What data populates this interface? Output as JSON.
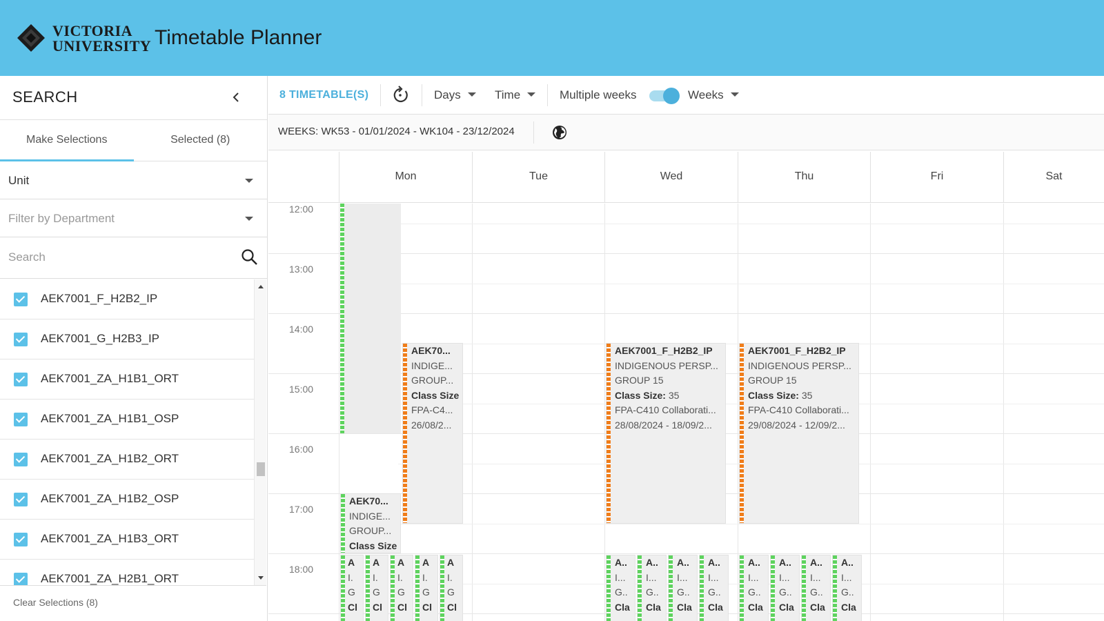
{
  "header": {
    "logo_line1": "VICTORIA",
    "logo_line2": "UNIVERSITY",
    "title": "Timetable Planner"
  },
  "sidebar": {
    "title": "SEARCH",
    "collapse_icon": "chevron-left-icon",
    "tabs": [
      {
        "label": "Make Selections",
        "active": true
      },
      {
        "label": "Selected (8)",
        "active": false
      }
    ],
    "unit_select": "Unit",
    "department_placeholder": "Filter by Department",
    "search_placeholder": "Search",
    "items": [
      {
        "label": "AEK7001_F_H2B2_IP",
        "checked": true
      },
      {
        "label": "AEK7001_G_H2B3_IP",
        "checked": true
      },
      {
        "label": "AEK7001_ZA_H1B1_ORT",
        "checked": true
      },
      {
        "label": "AEK7001_ZA_H1B1_OSP",
        "checked": true
      },
      {
        "label": "AEK7001_ZA_H1B2_ORT",
        "checked": true
      },
      {
        "label": "AEK7001_ZA_H1B2_OSP",
        "checked": true
      },
      {
        "label": "AEK7001_ZA_H1B3_ORT",
        "checked": true
      },
      {
        "label": "AEK7001_ZA_H2B1_ORT",
        "checked": true
      }
    ],
    "clear_label": "Clear Selections (8)"
  },
  "toolbar": {
    "timetables": "8 TIMETABLE(S)",
    "days": "Days",
    "time": "Time",
    "multiple_weeks": "Multiple weeks",
    "weeks": "Weeks",
    "multiple_weeks_on": true
  },
  "weeks_bar": {
    "text": "WEEKS: WK53 - 01/01/2024 - WK104 - 23/12/2024"
  },
  "days": [
    "Mon",
    "Tue",
    "Wed",
    "Thu",
    "Fri",
    "Sat"
  ],
  "times": [
    "12:00",
    "13:00",
    "14:00",
    "15:00",
    "16:00",
    "17:00",
    "18:00"
  ],
  "events": {
    "mon_orange": [
      "AEK70...",
      "INDIGE...",
      "GROUP...",
      "Class Size",
      "FPA-C4...",
      "26/08/2..."
    ],
    "mon_green": [
      "AEK70...",
      "INDIGE...",
      "GROUP...",
      "Class Size"
    ],
    "wed": {
      "title": "AEK7001_F_H2B2_IP",
      "desc": "INDIGENOUS PERSP...",
      "group": "GROUP 15",
      "size_label": "Class Size:",
      "size": "35",
      "room": "FPA-C410 Collaborati...",
      "dates": "28/08/2024 - 18/09/2..."
    },
    "thu": {
      "title": "AEK7001_F_H2B2_IP",
      "desc": "INDIGENOUS PERSP...",
      "group": "GROUP 15",
      "size_label": "Class Size:",
      "size": "35",
      "room": "FPA-C410 Collaborati...",
      "dates": "29/08/2024 - 12/09/2..."
    },
    "mon_small": [
      [
        "A",
        "I.",
        "G",
        "Cl"
      ],
      [
        "A",
        "I.",
        "G",
        "Cl"
      ],
      [
        "A",
        "I.",
        "G",
        "Cl"
      ],
      [
        "A",
        "I.",
        "G",
        "Cl"
      ],
      [
        "A",
        "I.",
        "G",
        "Cl"
      ]
    ],
    "wed_small": [
      [
        "A..",
        "I...",
        "G..",
        "Cla"
      ],
      [
        "A..",
        "I...",
        "G..",
        "Cla"
      ],
      [
        "A..",
        "I...",
        "G..",
        "Cla"
      ],
      [
        "A..",
        "I...",
        "G..",
        "Cla"
      ]
    ],
    "thu_small": [
      [
        "A..",
        "I...",
        "G..",
        "Cla"
      ],
      [
        "A..",
        "I...",
        "G..",
        "Cla"
      ],
      [
        "A..",
        "I...",
        "G..",
        "Cla"
      ],
      [
        "A..",
        "I...",
        "G..",
        "Cla"
      ]
    ]
  }
}
